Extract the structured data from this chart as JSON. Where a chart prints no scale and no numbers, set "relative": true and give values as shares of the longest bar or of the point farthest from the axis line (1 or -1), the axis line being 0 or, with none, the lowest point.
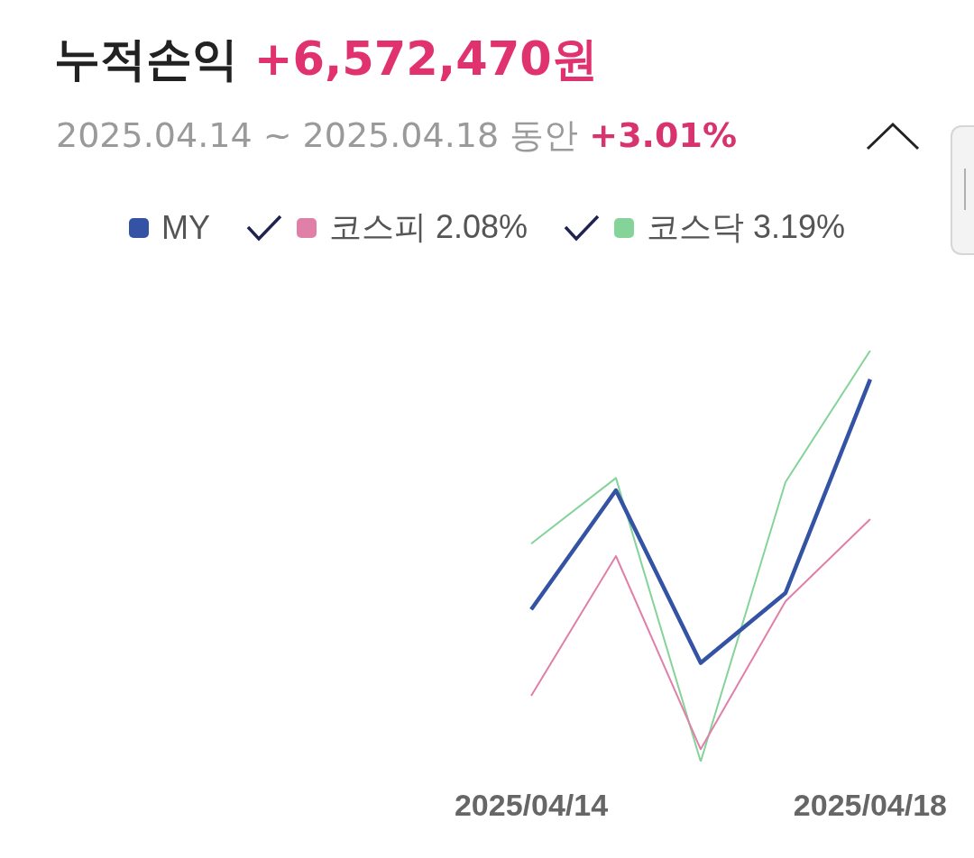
{
  "chart_data": {
    "type": "line",
    "title": "누적손익 +6,572,470원",
    "subtitle": "2025.04.14 ~ 2025.04.18 동안 +3.01%",
    "relative": true,
    "legend": "top",
    "tick_labels": "x",
    "categories": [
      "2025/04/14",
      null,
      null,
      null,
      "2025/04/18"
    ],
    "series": [
      {
        "name": "MY",
        "color": "#3553a5",
        "values": [
          0.37,
          0.66,
          0.24,
          0.41,
          0.93
        ]
      },
      {
        "name": "코스피 2.08%",
        "color": "#e07fa8",
        "values": [
          0.16,
          0.5,
          0.03,
          0.39,
          0.59
        ]
      },
      {
        "name": "코스닥 3.19%",
        "color": "#84d49a",
        "values": [
          0.53,
          0.69,
          0,
          0.68,
          1
        ]
      }
    ]
  }
}
